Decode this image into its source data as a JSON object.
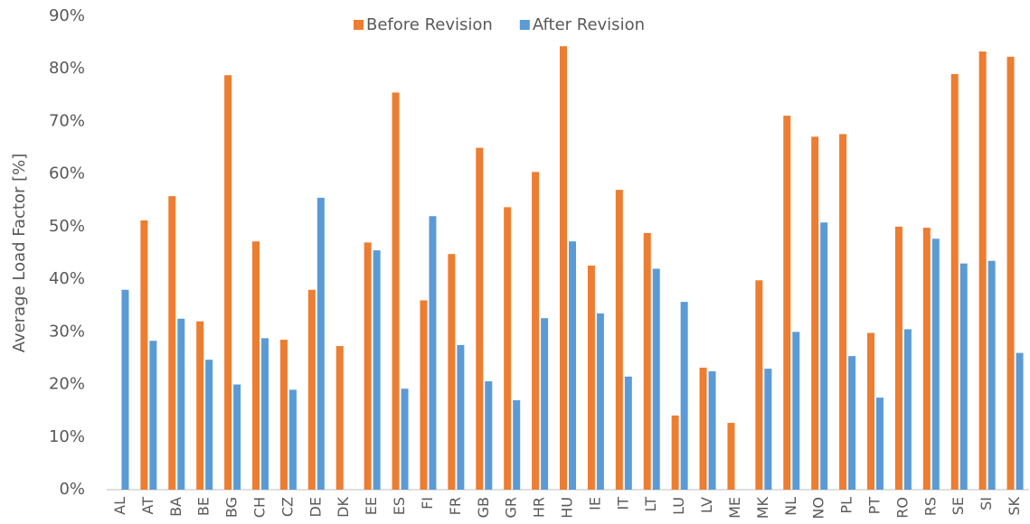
{
  "chart_data": {
    "type": "bar",
    "y_label": "Average Load Factor [%]",
    "categories": [
      "AL",
      "AT",
      "BA",
      "BE",
      "BG",
      "CH",
      "CZ",
      "DE",
      "DK",
      "EE",
      "ES",
      "FI",
      "FR",
      "GB",
      "GR",
      "HR",
      "HU",
      "IE",
      "IT",
      "LT",
      "LU",
      "LV",
      "ME",
      "MK",
      "NL",
      "NO",
      "PL",
      "PT",
      "RO",
      "RS",
      "SE",
      "SI",
      "SK"
    ],
    "series": [
      {
        "name": "Before Revision",
        "color": "#ed7d31",
        "values": [
          null,
          51.2,
          55.8,
          32,
          78.8,
          47.2,
          28.5,
          38,
          27.3,
          47,
          75.5,
          36,
          44.8,
          65,
          53.7,
          60.4,
          84.3,
          42.6,
          57,
          48.8,
          14.1,
          23.2,
          12.7,
          39.8,
          71.1,
          67.1,
          67.6,
          29.8,
          50,
          49.8,
          79,
          83.3,
          82.3
        ]
      },
      {
        "name": "After Revision",
        "color": "#5b9bd5",
        "values": [
          38,
          28.3,
          32.5,
          24.7,
          20,
          28.8,
          19,
          55.5,
          null,
          45.5,
          19.2,
          52,
          27.5,
          20.6,
          17,
          32.6,
          47.2,
          33.5,
          21.5,
          42,
          35.7,
          22.5,
          null,
          23,
          30,
          50.8,
          25.4,
          17.5,
          30.5,
          47.7,
          43,
          43.5,
          26
        ]
      }
    ],
    "ylim": [
      0,
      90
    ],
    "yticks": [
      {
        "value": 0,
        "label": "0%"
      },
      {
        "value": 10,
        "label": "10%"
      },
      {
        "value": 20,
        "label": "20%"
      },
      {
        "value": 30,
        "label": "30%"
      },
      {
        "value": 40,
        "label": "40%"
      },
      {
        "value": 50,
        "label": "50%"
      },
      {
        "value": 60,
        "label": "60%"
      },
      {
        "value": 70,
        "label": "70%"
      },
      {
        "value": 80,
        "label": "80%"
      },
      {
        "value": 90,
        "label": "90%"
      }
    ],
    "grid": false,
    "legend": "top"
  }
}
